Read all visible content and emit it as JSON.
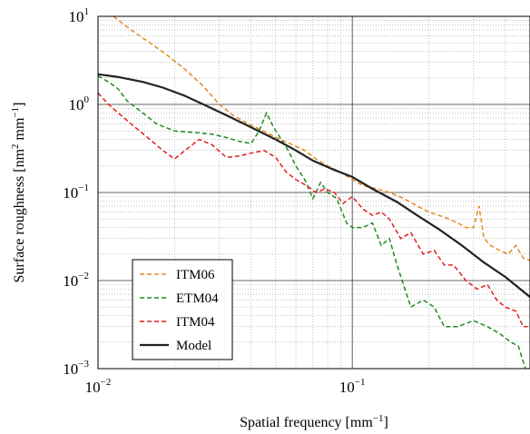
{
  "chart_data": {
    "type": "line",
    "title": "",
    "xlabel": "Spatial frequency [mm",
    "xlabel_sup": "−1",
    "xlabel_end": "]",
    "ylabel": "Surface roughness [nm",
    "ylabel_sup1": "2",
    "ylabel_mid": " mm",
    "ylabel_sup2": "−1",
    "ylabel_end": "]",
    "x_scale": "log",
    "y_scale": "log",
    "xlim": [
      0.01,
      0.5
    ],
    "ylim": [
      0.001,
      10
    ],
    "grid": true,
    "x_ticks": [
      {
        "value": 0.01,
        "base": "10",
        "exp": "−2"
      },
      {
        "value": 0.1,
        "base": "10",
        "exp": "−1"
      }
    ],
    "y_ticks": [
      {
        "value": 0.001,
        "base": "10",
        "exp": "−3"
      },
      {
        "value": 0.01,
        "base": "10",
        "exp": "−2"
      },
      {
        "value": 0.1,
        "base": "10",
        "exp": "−1"
      },
      {
        "value": 1,
        "base": "10",
        "exp": "0"
      },
      {
        "value": 10,
        "base": "10",
        "exp": "1"
      }
    ],
    "legend_position": "bottom-left",
    "series": [
      {
        "name": "ITM06",
        "color": "#e08a1e",
        "style": "dashed",
        "x": [
          0.0115,
          0.0135,
          0.016,
          0.019,
          0.022,
          0.026,
          0.03,
          0.034,
          0.04,
          0.046,
          0.052,
          0.058,
          0.065,
          0.072,
          0.08,
          0.09,
          0.1,
          0.11,
          0.125,
          0.14,
          0.16,
          0.18,
          0.2,
          0.22,
          0.24,
          0.26,
          0.28,
          0.3,
          0.315,
          0.33,
          0.35,
          0.38,
          0.41,
          0.44,
          0.47,
          0.5
        ],
        "y": [
          10,
          7,
          5,
          3.5,
          2.5,
          1.6,
          1.0,
          0.75,
          0.58,
          0.48,
          0.4,
          0.35,
          0.3,
          0.24,
          0.2,
          0.17,
          0.14,
          0.12,
          0.11,
          0.1,
          0.085,
          0.07,
          0.06,
          0.055,
          0.05,
          0.045,
          0.04,
          0.04,
          0.07,
          0.03,
          0.025,
          0.022,
          0.02,
          0.025,
          0.018,
          0.017
        ]
      },
      {
        "name": "ETM04",
        "color": "#1e8c1e",
        "style": "dashed",
        "x": [
          0.01,
          0.011,
          0.012,
          0.013,
          0.015,
          0.017,
          0.02,
          0.024,
          0.028,
          0.032,
          0.036,
          0.04,
          0.043,
          0.046,
          0.049,
          0.052,
          0.056,
          0.06,
          0.065,
          0.07,
          0.075,
          0.08,
          0.087,
          0.095,
          0.1,
          0.11,
          0.12,
          0.13,
          0.14,
          0.15,
          0.17,
          0.19,
          0.21,
          0.23,
          0.26,
          0.3,
          0.34,
          0.38,
          0.42,
          0.45,
          0.47,
          0.48
        ],
        "y": [
          2.1,
          1.8,
          1.5,
          1.1,
          0.8,
          0.6,
          0.5,
          0.48,
          0.46,
          0.42,
          0.38,
          0.36,
          0.5,
          0.8,
          0.55,
          0.42,
          0.3,
          0.2,
          0.14,
          0.085,
          0.13,
          0.1,
          0.085,
          0.045,
          0.04,
          0.04,
          0.045,
          0.025,
          0.03,
          0.015,
          0.005,
          0.006,
          0.005,
          0.003,
          0.003,
          0.0035,
          0.003,
          0.0025,
          0.002,
          0.0018,
          0.0012,
          0.001
        ]
      },
      {
        "name": "ITM04",
        "color": "#e01e1e",
        "style": "dashed",
        "x": [
          0.01,
          0.011,
          0.012,
          0.014,
          0.016,
          0.018,
          0.02,
          0.022,
          0.025,
          0.028,
          0.032,
          0.036,
          0.04,
          0.045,
          0.05,
          0.055,
          0.06,
          0.066,
          0.072,
          0.078,
          0.085,
          0.092,
          0.1,
          0.11,
          0.12,
          0.13,
          0.14,
          0.155,
          0.17,
          0.19,
          0.21,
          0.23,
          0.25,
          0.28,
          0.31,
          0.34,
          0.37,
          0.4,
          0.44,
          0.47,
          0.49
        ],
        "y": [
          1.35,
          1.0,
          0.8,
          0.55,
          0.4,
          0.3,
          0.24,
          0.3,
          0.4,
          0.35,
          0.25,
          0.26,
          0.28,
          0.3,
          0.25,
          0.17,
          0.14,
          0.12,
          0.1,
          0.11,
          0.1,
          0.075,
          0.09,
          0.065,
          0.055,
          0.06,
          0.05,
          0.03,
          0.035,
          0.02,
          0.022,
          0.015,
          0.015,
          0.01,
          0.008,
          0.009,
          0.006,
          0.005,
          0.0045,
          0.003,
          0.003
        ]
      },
      {
        "name": "Model",
        "color": "#222222",
        "style": "solid",
        "x": [
          0.01,
          0.012,
          0.015,
          0.018,
          0.022,
          0.027,
          0.033,
          0.04,
          0.05,
          0.06,
          0.07,
          0.085,
          0.1,
          0.12,
          0.15,
          0.18,
          0.22,
          0.27,
          0.33,
          0.4,
          0.5
        ],
        "y": [
          2.2,
          2.05,
          1.8,
          1.55,
          1.25,
          0.95,
          0.72,
          0.55,
          0.4,
          0.3,
          0.23,
          0.18,
          0.15,
          0.11,
          0.078,
          0.055,
          0.038,
          0.025,
          0.016,
          0.011,
          0.0065
        ]
      }
    ]
  }
}
